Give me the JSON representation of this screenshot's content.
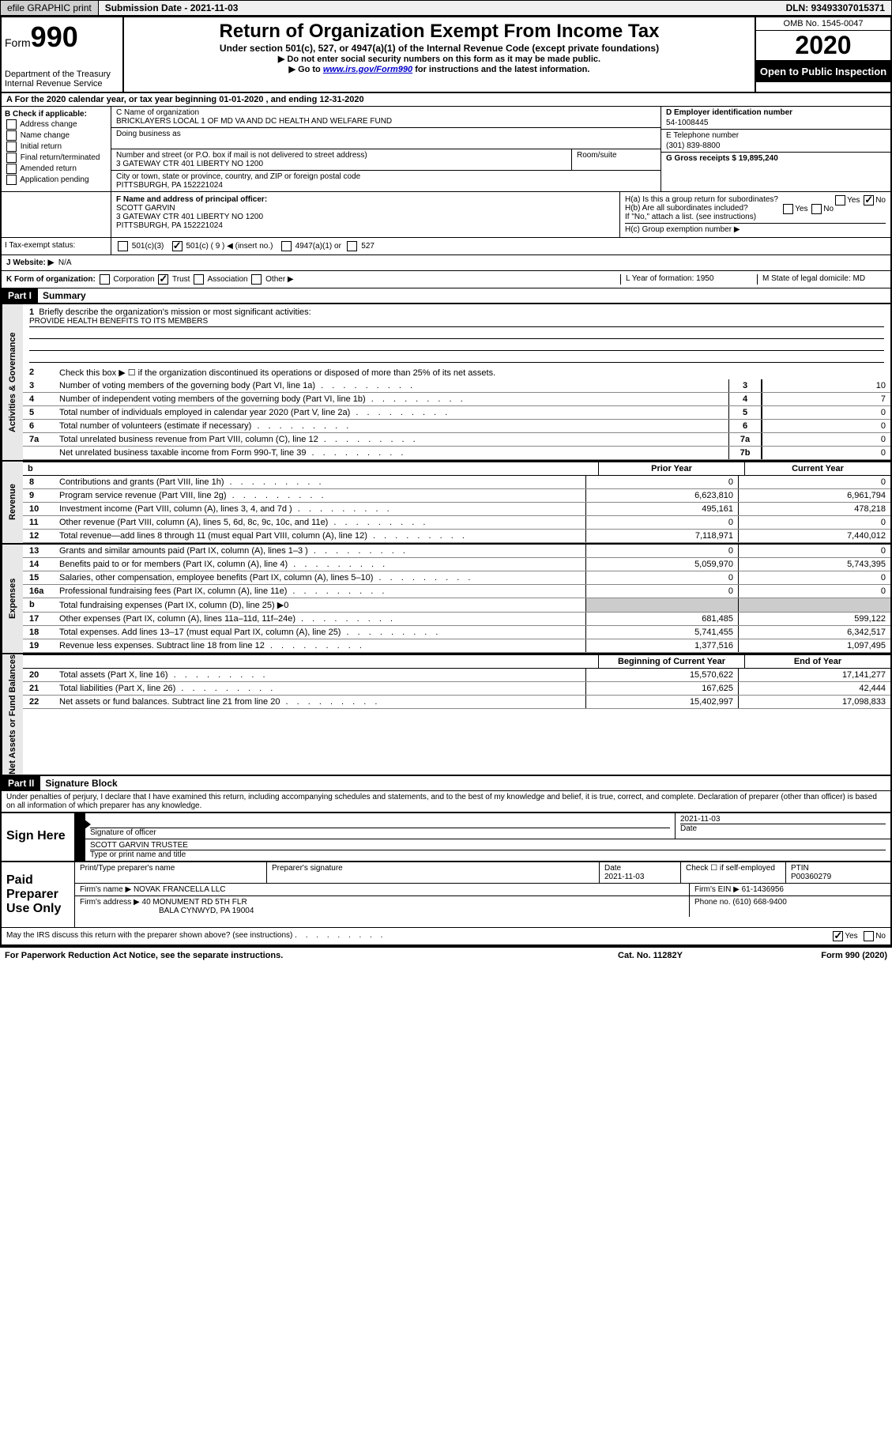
{
  "topbar": {
    "efile": "efile GRAPHIC print",
    "submission_label": "Submission Date - 2021-11-03",
    "dln": "DLN: 93493307015371"
  },
  "header": {
    "form_prefix": "Form",
    "form_number": "990",
    "department": "Department of the Treasury Internal Revenue Service",
    "title": "Return of Organization Exempt From Income Tax",
    "subtitle": "Under section 501(c), 527, or 4947(a)(1) of the Internal Revenue Code (except private foundations)",
    "note1": "▶ Do not enter social security numbers on this form as it may be made public.",
    "note2_pre": "▶ Go to ",
    "note2_link": "www.irs.gov/Form990",
    "note2_post": " for instructions and the latest information.",
    "omb": "OMB No. 1545-0047",
    "year": "2020",
    "open_public": "Open to Public Inspection"
  },
  "section_a": "A For the 2020 calendar year, or tax year beginning 01-01-2020   , and ending 12-31-2020",
  "box_b": {
    "label": "B Check if applicable:",
    "items": [
      "Address change",
      "Name change",
      "Initial return",
      "Final return/terminated",
      "Amended return",
      "Application pending"
    ]
  },
  "box_c": {
    "name_label": "C Name of organization",
    "name": "BRICKLAYERS LOCAL 1 OF MD VA AND DC HEALTH AND WELFARE FUND",
    "dba_label": "Doing business as",
    "street_label": "Number and street (or P.O. box if mail is not delivered to street address)",
    "street": "3 GATEWAY CTR 401 LIBERTY NO 1200",
    "room_label": "Room/suite",
    "city_label": "City or town, state or province, country, and ZIP or foreign postal code",
    "city": "PITTSBURGH, PA  152221024"
  },
  "box_d": {
    "label": "D Employer identification number",
    "value": "54-1008445"
  },
  "box_e": {
    "label": "E Telephone number",
    "value": "(301) 839-8800"
  },
  "box_g": {
    "label": "G Gross receipts $ 19,895,240"
  },
  "box_f": {
    "label": "F  Name and address of principal officer:",
    "name": "SCOTT GARVIN",
    "addr1": "3 GATEWAY CTR 401 LIBERTY NO 1200",
    "addr2": "PITTSBURGH, PA  152221024"
  },
  "box_h": {
    "a_label": "H(a)  Is this a group return for subordinates?",
    "b_label": "H(b)  Are all subordinates included?",
    "note": "If \"No,\" attach a list. (see instructions)",
    "c_label": "H(c)  Group exemption number ▶"
  },
  "row_i": {
    "label": "I  Tax-exempt status:",
    "opt1": "501(c)(3)",
    "opt2": "501(c) ( 9 ) ◀ (insert no.)",
    "opt3": "4947(a)(1) or",
    "opt4": "527"
  },
  "row_j": {
    "label": "J  Website: ▶",
    "value": "N/A"
  },
  "row_k": {
    "label": "K Form of organization:",
    "opts": [
      "Corporation",
      "Trust",
      "Association",
      "Other ▶"
    ]
  },
  "row_l": {
    "label": "L Year of formation: 1950"
  },
  "row_m": {
    "label": "M State of legal domicile: MD"
  },
  "part1": {
    "header": "Part I",
    "title": "Summary",
    "side_gov": "Activities & Governance",
    "side_rev": "Revenue",
    "side_exp": "Expenses",
    "side_net": "Net Assets or Fund Balances",
    "l1_label": "Briefly describe the organization's mission or most significant activities:",
    "l1_value": "PROVIDE HEALTH BENEFITS TO ITS MEMBERS",
    "l2": "Check this box ▶ ☐  if the organization discontinued its operations or disposed of more than 25% of its net assets.",
    "lines_single": [
      {
        "n": "3",
        "t": "Number of voting members of the governing body (Part VI, line 1a)",
        "box": "3",
        "v": "10"
      },
      {
        "n": "4",
        "t": "Number of independent voting members of the governing body (Part VI, line 1b)",
        "box": "4",
        "v": "7"
      },
      {
        "n": "5",
        "t": "Total number of individuals employed in calendar year 2020 (Part V, line 2a)",
        "box": "5",
        "v": "0"
      },
      {
        "n": "6",
        "t": "Total number of volunteers (estimate if necessary)",
        "box": "6",
        "v": "0"
      },
      {
        "n": "7a",
        "t": "Total unrelated business revenue from Part VIII, column (C), line 12",
        "box": "7a",
        "v": "0"
      },
      {
        "n": "",
        "t": "Net unrelated business taxable income from Form 990-T, line 39",
        "box": "7b",
        "v": "0"
      }
    ],
    "col_prior": "Prior Year",
    "col_current": "Current Year",
    "revenue_lines": [
      {
        "n": "8",
        "t": "Contributions and grants (Part VIII, line 1h)",
        "p": "0",
        "c": "0"
      },
      {
        "n": "9",
        "t": "Program service revenue (Part VIII, line 2g)",
        "p": "6,623,810",
        "c": "6,961,794"
      },
      {
        "n": "10",
        "t": "Investment income (Part VIII, column (A), lines 3, 4, and 7d )",
        "p": "495,161",
        "c": "478,218"
      },
      {
        "n": "11",
        "t": "Other revenue (Part VIII, column (A), lines 5, 6d, 8c, 9c, 10c, and 11e)",
        "p": "0",
        "c": "0"
      },
      {
        "n": "12",
        "t": "Total revenue—add lines 8 through 11 (must equal Part VIII, column (A), line 12)",
        "p": "7,118,971",
        "c": "7,440,012"
      }
    ],
    "expense_lines": [
      {
        "n": "13",
        "t": "Grants and similar amounts paid (Part IX, column (A), lines 1–3 )",
        "p": "0",
        "c": "0"
      },
      {
        "n": "14",
        "t": "Benefits paid to or for members (Part IX, column (A), line 4)",
        "p": "5,059,970",
        "c": "5,743,395"
      },
      {
        "n": "15",
        "t": "Salaries, other compensation, employee benefits (Part IX, column (A), lines 5–10)",
        "p": "0",
        "c": "0"
      },
      {
        "n": "16a",
        "t": "Professional fundraising fees (Part IX, column (A), line 11e)",
        "p": "0",
        "c": "0"
      },
      {
        "n": "b",
        "t": "Total fundraising expenses (Part IX, column (D), line 25) ▶0",
        "p": "",
        "c": ""
      },
      {
        "n": "17",
        "t": "Other expenses (Part IX, column (A), lines 11a–11d, 11f–24e)",
        "p": "681,485",
        "c": "599,122"
      },
      {
        "n": "18",
        "t": "Total expenses. Add lines 13–17 (must equal Part IX, column (A), line 25)",
        "p": "5,741,455",
        "c": "6,342,517"
      },
      {
        "n": "19",
        "t": "Revenue less expenses. Subtract line 18 from line 12",
        "p": "1,377,516",
        "c": "1,097,495"
      }
    ],
    "col_begin": "Beginning of Current Year",
    "col_end": "End of Year",
    "net_lines": [
      {
        "n": "20",
        "t": "Total assets (Part X, line 16)",
        "p": "15,570,622",
        "c": "17,141,277"
      },
      {
        "n": "21",
        "t": "Total liabilities (Part X, line 26)",
        "p": "167,625",
        "c": "42,444"
      },
      {
        "n": "22",
        "t": "Net assets or fund balances. Subtract line 21 from line 20",
        "p": "15,402,997",
        "c": "17,098,833"
      }
    ]
  },
  "part2": {
    "header": "Part II",
    "title": "Signature Block",
    "perjury": "Under penalties of perjury, I declare that I have examined this return, including accompanying schedules and statements, and to the best of my knowledge and belief, it is true, correct, and complete. Declaration of preparer (other than officer) is based on all information of which preparer has any knowledge."
  },
  "sign_here": {
    "label": "Sign Here",
    "sig_label": "Signature of officer",
    "date_label": "Date",
    "date_value": "2021-11-03",
    "name": "SCOTT GARVIN  TRUSTEE",
    "name_label": "Type or print name and title"
  },
  "paid_prep": {
    "label": "Paid Preparer Use Only",
    "h_print": "Print/Type preparer's name",
    "h_sig": "Preparer's signature",
    "h_date": "Date",
    "date_value": "2021-11-03",
    "h_check": "Check ☐ if self-employed",
    "h_ptin": "PTIN",
    "ptin": "P00360279",
    "firm_name_label": "Firm's name      ▶",
    "firm_name": "NOVAK FRANCELLA LLC",
    "firm_ein_label": "Firm's EIN ▶",
    "firm_ein": "61-1436956",
    "firm_addr_label": "Firm's address ▶",
    "firm_addr1": "40 MONUMENT RD 5TH FLR",
    "firm_addr2": "BALA CYNWYD, PA  19004",
    "phone_label": "Phone no.",
    "phone": "(610) 668-9400"
  },
  "irs_discuss": "May the IRS discuss this return with the preparer shown above? (see instructions)",
  "footer": {
    "paperwork": "For Paperwork Reduction Act Notice, see the separate instructions.",
    "cat": "Cat. No. 11282Y",
    "form": "Form 990 (2020)"
  },
  "yes": "Yes",
  "no": "No"
}
